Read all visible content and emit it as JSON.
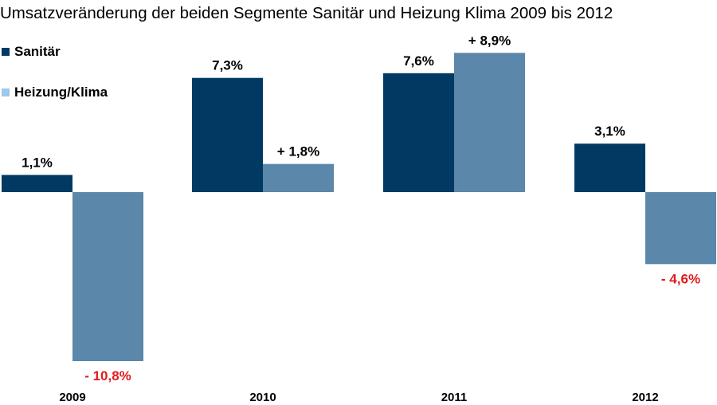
{
  "chart_data": {
    "type": "bar",
    "title": "Umsatzveränderung der beiden Segmente Sanitär und Heizung Klima 2009 bis 2012",
    "categories": [
      "2009",
      "2010",
      "2011",
      "2012"
    ],
    "series": [
      {
        "name": "Sanitär",
        "values": [
          1.1,
          7.3,
          7.6,
          3.1
        ],
        "labels": [
          "1,1%",
          "7,3%",
          "7,6%",
          "3,1%"
        ],
        "color": "#003a63"
      },
      {
        "name": "Heizung/Klima",
        "values": [
          -10.8,
          1.8,
          8.9,
          -4.6
        ],
        "labels": [
          "- 10,8%",
          "+ 1,8%",
          "+ 8,9%",
          "- 4,6%"
        ],
        "color": "#5b87aa"
      }
    ],
    "legend_swatch_colors": [
      "#003a63",
      "#9cc8ec"
    ],
    "positive_label_color": "#000000",
    "negative_label_color": "#e01b1b",
    "legend_position": "top-left",
    "grid": false,
    "ylim": [
      -10.8,
      8.9
    ]
  }
}
